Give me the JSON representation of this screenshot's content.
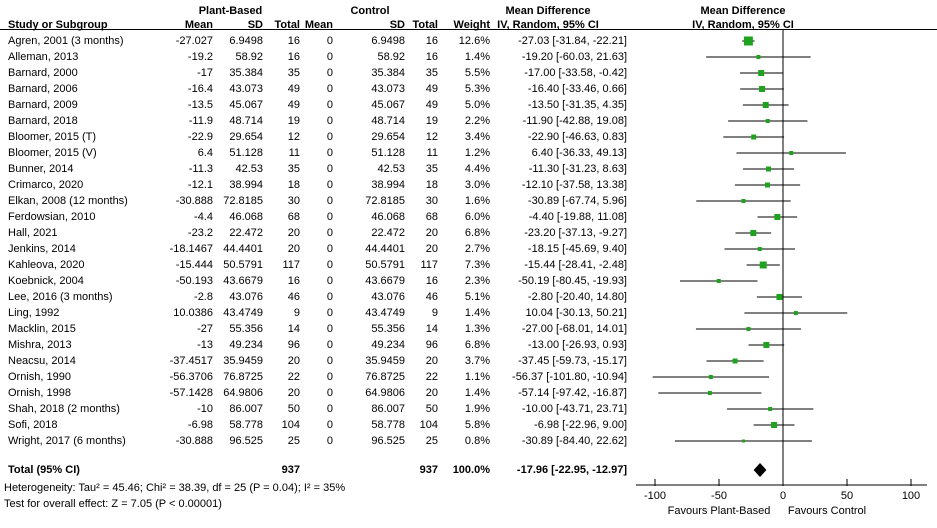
{
  "header": {
    "study": "Study or Subgroup",
    "group1": "Plant-Based",
    "group2": "Control",
    "mean": "Mean",
    "sd": "SD",
    "total": "Total",
    "weight": "Weight",
    "md_line1": "Mean Difference",
    "md_line2": "IV, Random, 95% CI"
  },
  "chart_data": {
    "type": "forest",
    "effect_measure": "Mean Difference, IV, Random, 95% CI",
    "xlim": [
      -105,
      105
    ],
    "x_ticks": [
      -100,
      -50,
      0,
      50,
      100
    ],
    "favours_left": "Favours Plant-Based",
    "favours_right": "Favours Control",
    "marker_color": "#1fa31f",
    "line_color": "#000000",
    "studies": [
      {
        "name": "Agren, 2001 (3 months)",
        "mean_pb": "-27.027",
        "sd_pb": "6.9498",
        "total_pb": "16",
        "mean_c": "0",
        "sd_c": "6.9498",
        "total_c": "16",
        "weight": "12.6%",
        "weight_pct": 12.6,
        "ci_text": "-27.03 [-31.84, -22.21]",
        "est": -27.03,
        "lo": -31.84,
        "hi": -22.21
      },
      {
        "name": "Alleman, 2013",
        "mean_pb": "-19.2",
        "sd_pb": "58.92",
        "total_pb": "16",
        "mean_c": "0",
        "sd_c": "58.92",
        "total_c": "16",
        "weight": "1.4%",
        "weight_pct": 1.4,
        "ci_text": "-19.20 [-60.03, 21.63]",
        "est": -19.2,
        "lo": -60.03,
        "hi": 21.63
      },
      {
        "name": "Barnard, 2000",
        "mean_pb": "-17",
        "sd_pb": "35.384",
        "total_pb": "35",
        "mean_c": "0",
        "sd_c": "35.384",
        "total_c": "35",
        "weight": "5.5%",
        "weight_pct": 5.5,
        "ci_text": "-17.00 [-33.58, -0.42]",
        "est": -17.0,
        "lo": -33.58,
        "hi": -0.42
      },
      {
        "name": "Barnard, 2006",
        "mean_pb": "-16.4",
        "sd_pb": "43.073",
        "total_pb": "49",
        "mean_c": "0",
        "sd_c": "43.073",
        "total_c": "49",
        "weight": "5.3%",
        "weight_pct": 5.3,
        "ci_text": "-16.40 [-33.46, 0.66]",
        "est": -16.4,
        "lo": -33.46,
        "hi": 0.66
      },
      {
        "name": "Barnard, 2009",
        "mean_pb": "-13.5",
        "sd_pb": "45.067",
        "total_pb": "49",
        "mean_c": "0",
        "sd_c": "45.067",
        "total_c": "49",
        "weight": "5.0%",
        "weight_pct": 5.0,
        "ci_text": "-13.50 [-31.35, 4.35]",
        "est": -13.5,
        "lo": -31.35,
        "hi": 4.35
      },
      {
        "name": "Barnard, 2018",
        "mean_pb": "-11.9",
        "sd_pb": "48.714",
        "total_pb": "19",
        "mean_c": "0",
        "sd_c": "48.714",
        "total_c": "19",
        "weight": "2.2%",
        "weight_pct": 2.2,
        "ci_text": "-11.90 [-42.88, 19.08]",
        "est": -11.9,
        "lo": -42.88,
        "hi": 19.08
      },
      {
        "name": "Bloomer, 2015 (T)",
        "mean_pb": "-22.9",
        "sd_pb": "29.654",
        "total_pb": "12",
        "mean_c": "0",
        "sd_c": "29.654",
        "total_c": "12",
        "weight": "3.4%",
        "weight_pct": 3.4,
        "ci_text": "-22.90 [-46.63, 0.83]",
        "est": -22.9,
        "lo": -46.63,
        "hi": 0.83
      },
      {
        "name": "Bloomer, 2015 (V)",
        "mean_pb": "6.4",
        "sd_pb": "51.128",
        "total_pb": "11",
        "mean_c": "0",
        "sd_c": "51.128",
        "total_c": "11",
        "weight": "1.2%",
        "weight_pct": 1.2,
        "ci_text": "6.40 [-36.33, 49.13]",
        "est": 6.4,
        "lo": -36.33,
        "hi": 49.13
      },
      {
        "name": "Bunner, 2014",
        "mean_pb": "-11.3",
        "sd_pb": "42.53",
        "total_pb": "35",
        "mean_c": "0",
        "sd_c": "42.53",
        "total_c": "35",
        "weight": "4.4%",
        "weight_pct": 4.4,
        "ci_text": "-11.30 [-31.23, 8.63]",
        "est": -11.3,
        "lo": -31.23,
        "hi": 8.63
      },
      {
        "name": "Crimarco, 2020",
        "mean_pb": "-12.1",
        "sd_pb": "38.994",
        "total_pb": "18",
        "mean_c": "0",
        "sd_c": "38.994",
        "total_c": "18",
        "weight": "3.0%",
        "weight_pct": 3.0,
        "ci_text": "-12.10 [-37.58, 13.38]",
        "est": -12.1,
        "lo": -37.58,
        "hi": 13.38
      },
      {
        "name": "Elkan, 2008 (12 months)",
        "mean_pb": "-30.888",
        "sd_pb": "72.8185",
        "total_pb": "30",
        "mean_c": "0",
        "sd_c": "72.8185",
        "total_c": "30",
        "weight": "1.6%",
        "weight_pct": 1.6,
        "ci_text": "-30.89 [-67.74, 5.96]",
        "est": -30.89,
        "lo": -67.74,
        "hi": 5.96
      },
      {
        "name": "Ferdowsian, 2010",
        "mean_pb": "-4.4",
        "sd_pb": "46.068",
        "total_pb": "68",
        "mean_c": "0",
        "sd_c": "46.068",
        "total_c": "68",
        "weight": "6.0%",
        "weight_pct": 6.0,
        "ci_text": "-4.40 [-19.88, 11.08]",
        "est": -4.4,
        "lo": -19.88,
        "hi": 11.08
      },
      {
        "name": "Hall, 2021",
        "mean_pb": "-23.2",
        "sd_pb": "22.472",
        "total_pb": "20",
        "mean_c": "0",
        "sd_c": "22.472",
        "total_c": "20",
        "weight": "6.8%",
        "weight_pct": 6.8,
        "ci_text": "-23.20 [-37.13, -9.27]",
        "est": -23.2,
        "lo": -37.13,
        "hi": -9.27
      },
      {
        "name": "Jenkins, 2014",
        "mean_pb": "-18.1467",
        "sd_pb": "44.4401",
        "total_pb": "20",
        "mean_c": "0",
        "sd_c": "44.4401",
        "total_c": "20",
        "weight": "2.7%",
        "weight_pct": 2.7,
        "ci_text": "-18.15 [-45.69, 9.40]",
        "est": -18.15,
        "lo": -45.69,
        "hi": 9.4
      },
      {
        "name": "Kahleova, 2020",
        "mean_pb": "-15.444",
        "sd_pb": "50.5791",
        "total_pb": "117",
        "mean_c": "0",
        "sd_c": "50.5791",
        "total_c": "117",
        "weight": "7.3%",
        "weight_pct": 7.3,
        "ci_text": "-15.44 [-28.41, -2.48]",
        "est": -15.44,
        "lo": -28.41,
        "hi": -2.48
      },
      {
        "name": "Koebnick, 2004",
        "mean_pb": "-50.193",
        "sd_pb": "43.6679",
        "total_pb": "16",
        "mean_c": "0",
        "sd_c": "43.6679",
        "total_c": "16",
        "weight": "2.3%",
        "weight_pct": 2.3,
        "ci_text": "-50.19 [-80.45, -19.93]",
        "est": -50.19,
        "lo": -80.45,
        "hi": -19.93
      },
      {
        "name": "Lee, 2016 (3 months)",
        "mean_pb": "-2.8",
        "sd_pb": "43.076",
        "total_pb": "46",
        "mean_c": "0",
        "sd_c": "43.076",
        "total_c": "46",
        "weight": "5.1%",
        "weight_pct": 5.1,
        "ci_text": "-2.80 [-20.40, 14.80]",
        "est": -2.8,
        "lo": -20.4,
        "hi": 14.8
      },
      {
        "name": "Ling, 1992",
        "mean_pb": "10.0386",
        "sd_pb": "43.4749",
        "total_pb": "9",
        "mean_c": "0",
        "sd_c": "43.4749",
        "total_c": "9",
        "weight": "1.4%",
        "weight_pct": 1.4,
        "ci_text": "10.04 [-30.13, 50.21]",
        "est": 10.04,
        "lo": -30.13,
        "hi": 50.21
      },
      {
        "name": "Macklin, 2015",
        "mean_pb": "-27",
        "sd_pb": "55.356",
        "total_pb": "14",
        "mean_c": "0",
        "sd_c": "55.356",
        "total_c": "14",
        "weight": "1.3%",
        "weight_pct": 1.3,
        "ci_text": "-27.00 [-68.01, 14.01]",
        "est": -27.0,
        "lo": -68.01,
        "hi": 14.01
      },
      {
        "name": "Mishra, 2013",
        "mean_pb": "-13",
        "sd_pb": "49.234",
        "total_pb": "96",
        "mean_c": "0",
        "sd_c": "49.234",
        "total_c": "96",
        "weight": "6.8%",
        "weight_pct": 6.8,
        "ci_text": "-13.00 [-26.93, 0.93]",
        "est": -13.0,
        "lo": -26.93,
        "hi": 0.93
      },
      {
        "name": "Neacsu, 2014",
        "mean_pb": "-37.4517",
        "sd_pb": "35.9459",
        "total_pb": "20",
        "mean_c": "0",
        "sd_c": "35.9459",
        "total_c": "20",
        "weight": "3.7%",
        "weight_pct": 3.7,
        "ci_text": "-37.45 [-59.73, -15.17]",
        "est": -37.45,
        "lo": -59.73,
        "hi": -15.17
      },
      {
        "name": "Ornish, 1990",
        "mean_pb": "-56.3706",
        "sd_pb": "76.8725",
        "total_pb": "22",
        "mean_c": "0",
        "sd_c": "76.8725",
        "total_c": "22",
        "weight": "1.1%",
        "weight_pct": 1.1,
        "ci_text": "-56.37 [-101.80, -10.94]",
        "est": -56.37,
        "lo": -101.8,
        "hi": -10.94
      },
      {
        "name": "Ornish, 1998",
        "mean_pb": "-57.1428",
        "sd_pb": "64.9806",
        "total_pb": "20",
        "mean_c": "0",
        "sd_c": "64.9806",
        "total_c": "20",
        "weight": "1.4%",
        "weight_pct": 1.4,
        "ci_text": "-57.14 [-97.42, -16.87]",
        "est": -57.14,
        "lo": -97.42,
        "hi": -16.87
      },
      {
        "name": "Shah, 2018 (2 months)",
        "mean_pb": "-10",
        "sd_pb": "86.007",
        "total_pb": "50",
        "mean_c": "0",
        "sd_c": "86.007",
        "total_c": "50",
        "weight": "1.9%",
        "weight_pct": 1.9,
        "ci_text": "-10.00 [-43.71, 23.71]",
        "est": -10.0,
        "lo": -43.71,
        "hi": 23.71
      },
      {
        "name": "Sofi, 2018",
        "mean_pb": "-6.98",
        "sd_pb": "58.778",
        "total_pb": "104",
        "mean_c": "0",
        "sd_c": "58.778",
        "total_c": "104",
        "weight": "5.8%",
        "weight_pct": 5.8,
        "ci_text": "-6.98 [-22.96, 9.00]",
        "est": -6.98,
        "lo": -22.96,
        "hi": 9.0
      },
      {
        "name": "Wright, 2017 (6 months)",
        "mean_pb": "-30.888",
        "sd_pb": "96.525",
        "total_pb": "25",
        "mean_c": "0",
        "sd_c": "96.525",
        "total_c": "25",
        "weight": "0.8%",
        "weight_pct": 0.8,
        "ci_text": "-30.89 [-84.40, 22.62]",
        "est": -30.89,
        "lo": -84.4,
        "hi": 22.62
      }
    ],
    "total": {
      "label": "Total (95% CI)",
      "total_pb": "937",
      "total_c": "937",
      "weight": "100.0%",
      "ci_text": "-17.96 [-22.95, -12.97]",
      "est": -17.96,
      "lo": -22.95,
      "hi": -12.97
    }
  },
  "footer": {
    "heterogeneity": "Heterogeneity: Tau² = 45.46; Chi² = 38.39, df = 25 (P = 0.04); I² = 35%",
    "overall_effect": "Test for overall effect: Z = 7.05 (P < 0.00001)"
  },
  "axis": {
    "tick_labels": [
      "-100",
      "-50",
      "0",
      "50",
      "100"
    ],
    "favours_left": "Favours Plant-Based",
    "favours_right": "Favours Control"
  }
}
